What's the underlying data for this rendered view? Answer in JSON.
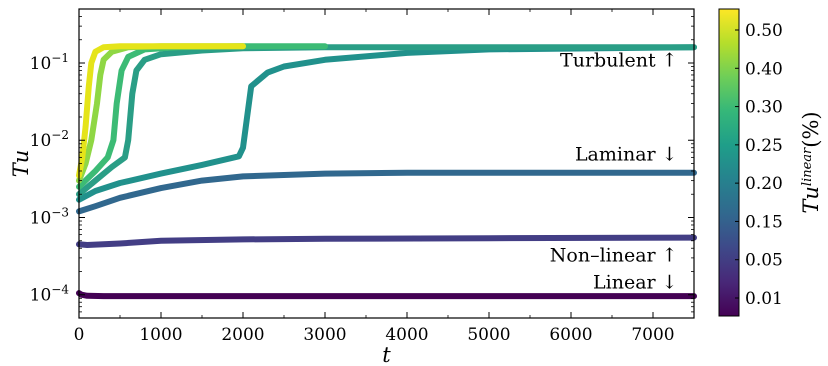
{
  "chart_data": {
    "type": "line",
    "xlabel": "t",
    "ylabel": "Tu",
    "xscale": "linear",
    "yscale": "log",
    "xlim": [
      0,
      7500
    ],
    "ylim": [
      5e-05,
      0.5
    ],
    "x_ticks": [
      0,
      1000,
      2000,
      3000,
      4000,
      5000,
      6000,
      7000
    ],
    "x_tick_labels": [
      "0",
      "1000",
      "2000",
      "3000",
      "4000",
      "5000",
      "6000",
      "7000"
    ],
    "y_ticks": [
      0.0001,
      0.001,
      0.01,
      0.1
    ],
    "y_tick_labels": [
      {
        "base": "10",
        "exp": "−4"
      },
      {
        "base": "10",
        "exp": "−3"
      },
      {
        "base": "10",
        "exp": "−2"
      },
      {
        "base": "10",
        "exp": "−1"
      }
    ],
    "grid": false,
    "colorbar": {
      "label_base": "Tu",
      "label_sup": "linear",
      "label_suffix": "(%)",
      "colormap": "viridis",
      "tick_labels": [
        "0.01",
        "0.05",
        "0.15",
        "0.20",
        "0.25",
        "0.30",
        "0.40",
        "0.50"
      ],
      "colors": [
        "#440154",
        "#482878",
        "#3e4989",
        "#31688e",
        "#26828e",
        "#1f9e89",
        "#35b779",
        "#6ece58",
        "#b5de2b",
        "#fde725"
      ]
    },
    "annotations": [
      {
        "text": "Turbulent ↑",
        "x": 7300,
        "y": 0.09
      },
      {
        "text": "Laminar ↓",
        "x": 7300,
        "y": 0.0055
      },
      {
        "text": "Non–linear ↑",
        "x": 7300,
        "y": 0.00027
      },
      {
        "text": "Linear ↓",
        "x": 7300,
        "y": 0.00012
      }
    ],
    "series": [
      {
        "linear_tu_percent": 0.01,
        "color": "#440154",
        "x": [
          0,
          30,
          100,
          300,
          1000,
          3000,
          7500
        ],
        "y": [
          0.000105,
          0.0001,
          9.7e-05,
          9.6e-05,
          9.6e-05,
          9.6e-05,
          9.6e-05
        ]
      },
      {
        "linear_tu_percent": 0.05,
        "color": "#433e85",
        "x": [
          0,
          100,
          500,
          1000,
          2000,
          3000,
          5000,
          7500
        ],
        "y": [
          0.00045,
          0.00044,
          0.00046,
          0.0005,
          0.00052,
          0.00053,
          0.00054,
          0.00055
        ]
      },
      {
        "linear_tu_percent": 0.15,
        "color": "#31688e",
        "x": [
          0,
          200,
          500,
          1000,
          1500,
          2000,
          3000,
          4000,
          5000,
          7500
        ],
        "y": [
          0.0012,
          0.0014,
          0.0018,
          0.0024,
          0.003,
          0.0034,
          0.0037,
          0.0038,
          0.0038,
          0.0038
        ]
      },
      {
        "linear_tu_percent": 0.2,
        "color": "#21918c",
        "x": [
          0,
          200,
          500,
          1000,
          1500,
          1950,
          2000,
          2050,
          2100,
          2300,
          2500,
          3000,
          4000,
          5000,
          7500
        ],
        "y": [
          0.0017,
          0.0022,
          0.0028,
          0.0037,
          0.0048,
          0.0062,
          0.008,
          0.02,
          0.05,
          0.075,
          0.09,
          0.11,
          0.135,
          0.15,
          0.16
        ]
      },
      {
        "linear_tu_percent": 0.25,
        "color": "#2a9e86",
        "x": [
          0,
          200,
          400,
          560,
          600,
          650,
          700,
          800,
          1000,
          1500,
          2000,
          3000,
          5000,
          7500
        ],
        "y": [
          0.002,
          0.003,
          0.0045,
          0.006,
          0.01,
          0.04,
          0.08,
          0.11,
          0.13,
          0.145,
          0.155,
          0.16,
          0.16,
          0.16
        ]
      },
      {
        "linear_tu_percent": 0.3,
        "color": "#3cbb75",
        "x": [
          0,
          200,
          350,
          420,
          460,
          520,
          600,
          800,
          1200,
          2000,
          3000
        ],
        "y": [
          0.0025,
          0.004,
          0.006,
          0.01,
          0.03,
          0.08,
          0.12,
          0.15,
          0.16,
          0.165,
          0.165
        ]
      },
      {
        "linear_tu_percent": 0.4,
        "color": "#8fd744",
        "x": [
          0,
          80,
          150,
          220,
          260,
          300,
          400,
          600,
          1000,
          2000
        ],
        "y": [
          0.003,
          0.005,
          0.01,
          0.03,
          0.07,
          0.11,
          0.14,
          0.16,
          0.165,
          0.165
        ]
      },
      {
        "linear_tu_percent": 0.5,
        "color": "#e5e419",
        "x": [
          0,
          40,
          80,
          120,
          150,
          200,
          300,
          500,
          1000,
          2000
        ],
        "y": [
          0.0035,
          0.006,
          0.015,
          0.05,
          0.1,
          0.14,
          0.16,
          0.165,
          0.165,
          0.165
        ]
      }
    ]
  }
}
